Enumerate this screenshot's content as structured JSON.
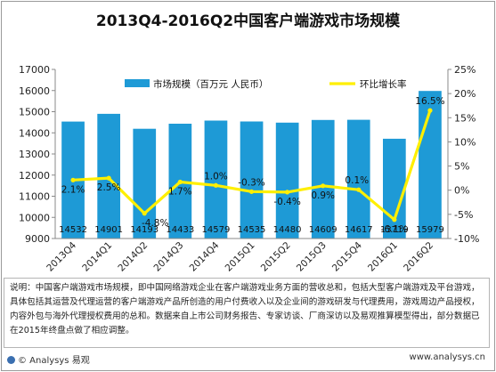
{
  "chart_data": {
    "type": "bar+line",
    "title": "2013Q4-2016Q2中国客户端游戏市场规模",
    "categories": [
      "2013Q4",
      "2014Q1",
      "2014Q2",
      "2014Q3",
      "2014Q4",
      "2015Q1",
      "2015Q2",
      "2015Q3",
      "2015Q4",
      "2016Q1",
      "2016Q2"
    ],
    "series": [
      {
        "name": "市场规模（百万元 人民币）",
        "type": "bar",
        "axis": "left",
        "color": "#1e9ad6",
        "values": [
          14532,
          14901,
          14193,
          14433,
          14579,
          14535,
          14480,
          14609,
          14617,
          13719,
          15979
        ],
        "labels": [
          "14532",
          "14901",
          "14193",
          "14433",
          "14579",
          "14535",
          "14480",
          "14609",
          "14617",
          "13719",
          "15979"
        ]
      },
      {
        "name": "环比增长率",
        "type": "line",
        "axis": "right",
        "color": "#ffef00",
        "values": [
          2.1,
          2.5,
          -4.8,
          1.7,
          1.0,
          -0.3,
          -0.4,
          0.9,
          0.1,
          -6.1,
          16.5
        ],
        "labels": [
          "2.1%",
          "2.5%",
          "-4.8%",
          "1.7%",
          "1.0%",
          "-0.3%",
          "-0.4%",
          "0.9%",
          "0.1%",
          "-6.1%",
          "16.5%"
        ]
      }
    ],
    "y_left": {
      "min": 9000,
      "max": 17000,
      "ticks": [
        "9000",
        "10000",
        "11000",
        "12000",
        "13000",
        "14000",
        "15000",
        "16000",
        "17000"
      ]
    },
    "y_right": {
      "min": -10,
      "max": 25,
      "ticks": [
        "-10%",
        "-5%",
        "0%",
        "5%",
        "10%",
        "15%",
        "20%",
        "25%"
      ]
    },
    "legend": {
      "position": "top"
    },
    "grid": false
  },
  "note": "说明：中国客户端游戏市场规模，即中国网络游戏企业在客户端游戏业务方面的营收总和，包括大型客户端游戏及平台游戏，具体包括其运营及代理运营的客户端游戏产品所创造的用户付费收入以及企业间的游戏研发与代理费用，游戏周边产品授权，内容外包与海外代理授权费用的总和。数据来自上市公司财务报告、专家访谈、厂商深访以及易观推算模型得出，部分数据已在2015年终盘点做了相应调整。",
  "footer": {
    "brand": "© Analysys 易观",
    "url": "www.analysys.cn"
  }
}
